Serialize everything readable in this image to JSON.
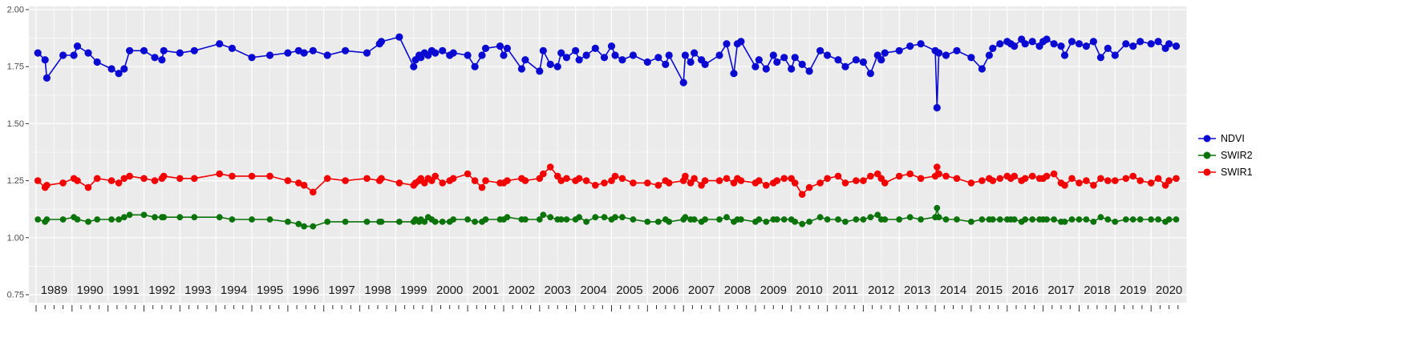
{
  "chart_data": {
    "type": "line",
    "title": "",
    "xlabel": "",
    "ylabel": "",
    "grid": true,
    "legend_position": "right",
    "panel_color": "#ebebeb",
    "grid_color": "#ffffff",
    "ylim": [
      0.75,
      2.0
    ],
    "xlim": [
      1988.8,
      2021.0
    ],
    "y_ticks": [
      2.0,
      1.75,
      1.5,
      1.25,
      1.0,
      0.75
    ],
    "y_tick_labels": [
      "2.00",
      "1.75",
      "1.50",
      "1.25",
      "1.00",
      "0.75"
    ],
    "x_tick_labels": [
      "1989",
      "1990",
      "1991",
      "1992",
      "1993",
      "1994",
      "1995",
      "1996",
      "1997",
      "1998",
      "1999",
      "2000",
      "2001",
      "2002",
      "2003",
      "2004",
      "2005",
      "2006",
      "2007",
      "2008",
      "2009",
      "2010",
      "2011",
      "2012",
      "2013",
      "2014",
      "2015",
      "2016",
      "2017",
      "2018",
      "2019",
      "2020"
    ],
    "x": [
      1989.05,
      1989.25,
      1989.3,
      1989.75,
      1990.05,
      1990.15,
      1990.45,
      1990.7,
      1991.1,
      1991.3,
      1991.45,
      1991.6,
      1992.0,
      1992.3,
      1992.5,
      1992.55,
      1993.0,
      1993.4,
      1994.1,
      1994.45,
      1995.0,
      1995.5,
      1996.0,
      1996.3,
      1996.45,
      1996.7,
      1997.1,
      1997.6,
      1998.2,
      1998.55,
      1998.6,
      1999.1,
      1999.5,
      1999.55,
      1999.65,
      1999.7,
      1999.8,
      1999.9,
      2000.0,
      2000.1,
      2000.3,
      2000.5,
      2000.6,
      2001.0,
      2001.2,
      2001.4,
      2001.5,
      2001.9,
      2002.0,
      2002.1,
      2002.5,
      2002.6,
      2003.0,
      2003.1,
      2003.3,
      2003.5,
      2003.6,
      2003.75,
      2004.0,
      2004.1,
      2004.3,
      2004.55,
      2004.8,
      2005.0,
      2005.1,
      2005.3,
      2005.6,
      2006.0,
      2006.3,
      2006.5,
      2006.6,
      2007.0,
      2007.05,
      2007.2,
      2007.3,
      2007.5,
      2007.6,
      2008.0,
      2008.2,
      2008.4,
      2008.5,
      2008.6,
      2009.0,
      2009.1,
      2009.3,
      2009.5,
      2009.6,
      2009.8,
      2010.0,
      2010.1,
      2010.3,
      2010.5,
      2010.8,
      2011.0,
      2011.3,
      2011.5,
      2011.8,
      2012.0,
      2012.2,
      2012.4,
      2012.5,
      2012.6,
      2013.0,
      2013.3,
      2013.6,
      2014.0,
      2014.05,
      2014.1,
      2014.3,
      2014.6,
      2015.0,
      2015.3,
      2015.5,
      2015.6,
      2015.8,
      2016.0,
      2016.1,
      2016.2,
      2016.4,
      2016.5,
      2016.7,
      2016.9,
      2017.0,
      2017.1,
      2017.3,
      2017.5,
      2017.6,
      2017.8,
      2018.0,
      2018.2,
      2018.4,
      2018.6,
      2018.8,
      2019.0,
      2019.3,
      2019.5,
      2019.7,
      2020.0,
      2020.2,
      2020.4,
      2020.5,
      2020.7
    ],
    "series": [
      {
        "name": "NDVI",
        "color": "#0a0ad2",
        "values": [
          1.81,
          1.78,
          1.7,
          1.8,
          1.8,
          1.84,
          1.81,
          1.77,
          1.74,
          1.72,
          1.74,
          1.82,
          1.82,
          1.79,
          1.78,
          1.82,
          1.81,
          1.82,
          1.85,
          1.83,
          1.79,
          1.8,
          1.81,
          1.82,
          1.81,
          1.82,
          1.8,
          1.82,
          1.81,
          1.85,
          1.86,
          1.88,
          1.75,
          1.78,
          1.8,
          1.79,
          1.81,
          1.8,
          1.82,
          1.81,
          1.82,
          1.8,
          1.81,
          1.8,
          1.75,
          1.8,
          1.83,
          1.84,
          1.8,
          1.83,
          1.74,
          1.78,
          1.73,
          1.82,
          1.76,
          1.75,
          1.81,
          1.79,
          1.82,
          1.78,
          1.8,
          1.83,
          1.79,
          1.84,
          1.8,
          1.78,
          1.8,
          1.77,
          1.79,
          1.76,
          1.8,
          1.68,
          1.8,
          1.77,
          1.81,
          1.78,
          1.76,
          1.8,
          1.85,
          1.72,
          1.85,
          1.86,
          1.75,
          1.78,
          1.74,
          1.8,
          1.77,
          1.79,
          1.74,
          1.79,
          1.76,
          1.73,
          1.82,
          1.8,
          1.78,
          1.75,
          1.78,
          1.77,
          1.72,
          1.8,
          1.78,
          1.81,
          1.82,
          1.84,
          1.85,
          1.82,
          1.57,
          1.81,
          1.8,
          1.82,
          1.79,
          1.74,
          1.8,
          1.83,
          1.85,
          1.86,
          1.85,
          1.84,
          1.87,
          1.85,
          1.86,
          1.84,
          1.86,
          1.87,
          1.85,
          1.84,
          1.8,
          1.86,
          1.85,
          1.84,
          1.86,
          1.79,
          1.83,
          1.8,
          1.85,
          1.84,
          1.86,
          1.85,
          1.86,
          1.83,
          1.85,
          1.84
        ]
      },
      {
        "name": "SWIR2",
        "color": "#0a730a",
        "values": [
          1.08,
          1.07,
          1.08,
          1.08,
          1.09,
          1.08,
          1.07,
          1.08,
          1.08,
          1.08,
          1.09,
          1.1,
          1.1,
          1.09,
          1.09,
          1.09,
          1.09,
          1.09,
          1.09,
          1.08,
          1.08,
          1.08,
          1.07,
          1.06,
          1.05,
          1.05,
          1.07,
          1.07,
          1.07,
          1.07,
          1.07,
          1.07,
          1.07,
          1.08,
          1.07,
          1.08,
          1.07,
          1.09,
          1.08,
          1.07,
          1.07,
          1.07,
          1.08,
          1.08,
          1.07,
          1.07,
          1.08,
          1.08,
          1.08,
          1.09,
          1.08,
          1.08,
          1.08,
          1.1,
          1.09,
          1.08,
          1.08,
          1.08,
          1.08,
          1.09,
          1.07,
          1.09,
          1.09,
          1.08,
          1.09,
          1.09,
          1.08,
          1.07,
          1.07,
          1.08,
          1.07,
          1.08,
          1.09,
          1.08,
          1.08,
          1.07,
          1.08,
          1.08,
          1.09,
          1.07,
          1.08,
          1.08,
          1.07,
          1.08,
          1.07,
          1.08,
          1.08,
          1.08,
          1.08,
          1.07,
          1.06,
          1.07,
          1.09,
          1.08,
          1.08,
          1.07,
          1.08,
          1.08,
          1.09,
          1.1,
          1.08,
          1.08,
          1.08,
          1.09,
          1.08,
          1.09,
          1.13,
          1.09,
          1.08,
          1.08,
          1.07,
          1.08,
          1.08,
          1.08,
          1.08,
          1.08,
          1.08,
          1.08,
          1.07,
          1.08,
          1.08,
          1.08,
          1.08,
          1.08,
          1.08,
          1.07,
          1.07,
          1.08,
          1.08,
          1.08,
          1.07,
          1.09,
          1.08,
          1.07,
          1.08,
          1.08,
          1.08,
          1.08,
          1.08,
          1.07,
          1.08,
          1.08
        ]
      },
      {
        "name": "SWIR1",
        "color": "#f40000",
        "values": [
          1.25,
          1.22,
          1.23,
          1.24,
          1.26,
          1.25,
          1.22,
          1.26,
          1.25,
          1.24,
          1.26,
          1.27,
          1.26,
          1.25,
          1.26,
          1.27,
          1.26,
          1.26,
          1.28,
          1.27,
          1.27,
          1.27,
          1.25,
          1.24,
          1.23,
          1.2,
          1.26,
          1.25,
          1.26,
          1.25,
          1.26,
          1.24,
          1.23,
          1.24,
          1.25,
          1.26,
          1.24,
          1.26,
          1.25,
          1.27,
          1.24,
          1.25,
          1.26,
          1.28,
          1.25,
          1.22,
          1.25,
          1.24,
          1.24,
          1.25,
          1.26,
          1.25,
          1.26,
          1.28,
          1.31,
          1.27,
          1.25,
          1.26,
          1.25,
          1.26,
          1.25,
          1.23,
          1.24,
          1.25,
          1.27,
          1.26,
          1.24,
          1.24,
          1.23,
          1.25,
          1.24,
          1.25,
          1.27,
          1.24,
          1.26,
          1.23,
          1.25,
          1.25,
          1.26,
          1.24,
          1.26,
          1.25,
          1.24,
          1.25,
          1.23,
          1.24,
          1.25,
          1.26,
          1.26,
          1.24,
          1.19,
          1.22,
          1.24,
          1.26,
          1.27,
          1.24,
          1.25,
          1.25,
          1.27,
          1.28,
          1.26,
          1.24,
          1.27,
          1.28,
          1.26,
          1.27,
          1.31,
          1.28,
          1.27,
          1.26,
          1.24,
          1.25,
          1.26,
          1.25,
          1.26,
          1.27,
          1.26,
          1.27,
          1.25,
          1.26,
          1.27,
          1.26,
          1.26,
          1.27,
          1.28,
          1.24,
          1.23,
          1.26,
          1.24,
          1.25,
          1.23,
          1.26,
          1.25,
          1.25,
          1.26,
          1.27,
          1.25,
          1.24,
          1.26,
          1.23,
          1.25,
          1.26
        ]
      }
    ]
  },
  "legend": {
    "items": [
      "NDVI",
      "SWIR2",
      "SWIR1"
    ]
  }
}
